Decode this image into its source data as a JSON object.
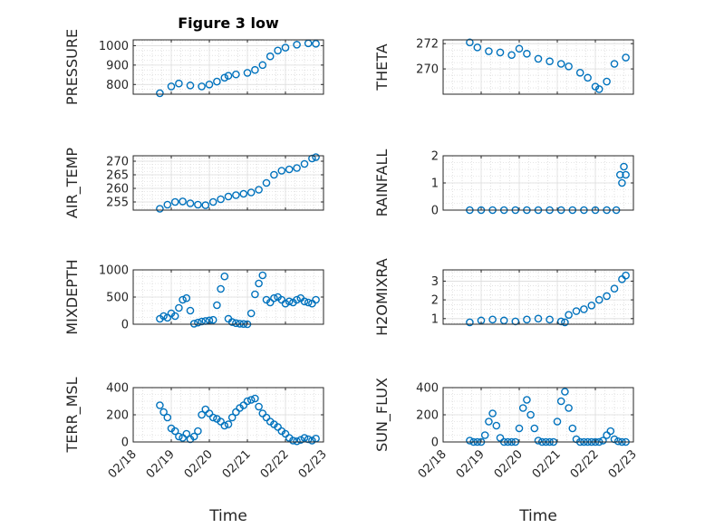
{
  "figure": {
    "title": "Figure 3 low",
    "xlabel_left": "Time",
    "xlabel_right": "Time",
    "marker_color": "#0072BD",
    "x_tick_labels": [
      "02/18",
      "02/19",
      "02/20",
      "02/21",
      "02/22",
      "02/23"
    ]
  },
  "chart_data": [
    {
      "id": "pressure",
      "type": "scatter",
      "ylabel": "PRESSURE",
      "ylim": [
        750,
        1030
      ],
      "yticks": [
        800,
        900,
        1000
      ],
      "grid": true,
      "x": [
        0.7,
        1.0,
        1.2,
        1.5,
        1.8,
        2.0,
        2.2,
        2.4,
        2.5,
        2.7,
        3.0,
        3.2,
        3.4,
        3.6,
        3.8,
        4.0,
        4.3,
        4.6,
        4.8
      ],
      "y": [
        755,
        790,
        805,
        795,
        790,
        800,
        815,
        835,
        845,
        852,
        860,
        875,
        900,
        945,
        975,
        990,
        1005,
        1012,
        1010
      ]
    },
    {
      "id": "theta",
      "type": "scatter",
      "ylabel": "THETA",
      "ylim": [
        268,
        272.3
      ],
      "yticks": [
        270,
        272
      ],
      "grid": true,
      "x": [
        0.7,
        0.9,
        1.2,
        1.5,
        1.8,
        2.0,
        2.2,
        2.5,
        2.8,
        3.1,
        3.3,
        3.6,
        3.8,
        4.0,
        4.1,
        4.3,
        4.5,
        4.8
      ],
      "y": [
        272.1,
        271.7,
        271.4,
        271.3,
        271.1,
        271.6,
        271.2,
        270.8,
        270.6,
        270.4,
        270.2,
        269.7,
        269.3,
        268.6,
        268.4,
        269.0,
        270.4,
        270.9
      ]
    },
    {
      "id": "air_temp",
      "type": "scatter",
      "ylabel": "AIR_TEMP",
      "ylim": [
        252,
        272
      ],
      "yticks": [
        255,
        260,
        265,
        270
      ],
      "grid": true,
      "x": [
        0.7,
        0.9,
        1.1,
        1.3,
        1.5,
        1.7,
        1.9,
        2.1,
        2.3,
        2.5,
        2.7,
        2.9,
        3.1,
        3.3,
        3.5,
        3.7,
        3.9,
        4.1,
        4.3,
        4.5,
        4.7,
        4.8
      ],
      "y": [
        252.5,
        254,
        255,
        255.2,
        254.5,
        254,
        253.8,
        255,
        256,
        257,
        257.5,
        258,
        258.5,
        259.5,
        262,
        265,
        266.5,
        267,
        267.5,
        269,
        271,
        271.5
      ]
    },
    {
      "id": "rainfall",
      "type": "scatter",
      "ylabel": "RAINFALL",
      "ylim": [
        0,
        2
      ],
      "yticks": [
        0,
        1,
        2
      ],
      "grid": true,
      "x": [
        0.7,
        1.0,
        1.3,
        1.6,
        1.9,
        2.2,
        2.5,
        2.8,
        3.1,
        3.4,
        3.7,
        4.0,
        4.3,
        4.55,
        4.65,
        4.7,
        4.75,
        4.8
      ],
      "y": [
        0,
        0,
        0,
        0,
        0,
        0,
        0,
        0,
        0,
        0,
        0,
        0,
        0,
        0,
        1.3,
        1.0,
        1.6,
        1.3
      ]
    },
    {
      "id": "mixdepth",
      "type": "scatter",
      "ylabel": "MIXDEPTH",
      "ylim": [
        0,
        1000
      ],
      "yticks": [
        0,
        500,
        1000
      ],
      "grid": true,
      "x": [
        0.7,
        0.8,
        0.9,
        1.0,
        1.1,
        1.2,
        1.3,
        1.4,
        1.5,
        1.6,
        1.7,
        1.8,
        1.9,
        2.0,
        2.1,
        2.2,
        2.3,
        2.4,
        2.5,
        2.6,
        2.7,
        2.8,
        2.9,
        3.0,
        3.1,
        3.2,
        3.3,
        3.4,
        3.5,
        3.6,
        3.7,
        3.8,
        3.9,
        4.0,
        4.1,
        4.2,
        4.3,
        4.4,
        4.5,
        4.6,
        4.7,
        4.8
      ],
      "y": [
        100,
        150,
        120,
        200,
        150,
        300,
        450,
        480,
        250,
        10,
        30,
        50,
        60,
        70,
        80,
        350,
        650,
        880,
        100,
        40,
        20,
        10,
        5,
        0,
        200,
        550,
        750,
        900,
        450,
        400,
        480,
        500,
        450,
        380,
        420,
        400,
        450,
        480,
        420,
        400,
        380,
        450
      ]
    },
    {
      "id": "h2omixra",
      "type": "scatter",
      "ylabel": "H2OMIXRA",
      "ylim": [
        0.7,
        3.6
      ],
      "yticks": [
        1,
        2,
        3
      ],
      "grid": true,
      "x": [
        0.7,
        1.0,
        1.3,
        1.6,
        1.9,
        2.2,
        2.5,
        2.8,
        3.1,
        3.2,
        3.3,
        3.5,
        3.7,
        3.9,
        4.1,
        4.3,
        4.5,
        4.7,
        4.8
      ],
      "y": [
        0.8,
        0.9,
        0.95,
        0.9,
        0.85,
        0.95,
        1.0,
        0.95,
        0.85,
        0.8,
        1.2,
        1.4,
        1.5,
        1.7,
        2.0,
        2.2,
        2.6,
        3.1,
        3.3
      ]
    },
    {
      "id": "terr_msl",
      "type": "scatter",
      "ylabel": "TERR_MSL",
      "ylim": [
        0,
        400
      ],
      "yticks": [
        0,
        200,
        400
      ],
      "grid": true,
      "x": [
        0.7,
        0.8,
        0.9,
        1.0,
        1.1,
        1.2,
        1.3,
        1.4,
        1.5,
        1.6,
        1.7,
        1.8,
        1.9,
        2.0,
        2.1,
        2.2,
        2.3,
        2.4,
        2.5,
        2.6,
        2.7,
        2.8,
        2.9,
        3.0,
        3.1,
        3.2,
        3.3,
        3.4,
        3.5,
        3.6,
        3.7,
        3.8,
        3.9,
        4.0,
        4.1,
        4.2,
        4.3,
        4.4,
        4.5,
        4.6,
        4.7,
        4.8
      ],
      "y": [
        270,
        220,
        180,
        100,
        80,
        40,
        30,
        60,
        20,
        40,
        80,
        200,
        240,
        210,
        180,
        170,
        150,
        120,
        130,
        180,
        220,
        250,
        270,
        300,
        310,
        320,
        260,
        210,
        180,
        150,
        130,
        110,
        80,
        60,
        30,
        10,
        5,
        15,
        30,
        20,
        10,
        25
      ]
    },
    {
      "id": "sun_flux",
      "type": "scatter",
      "ylabel": "SUN_FLUX",
      "ylim": [
        0,
        400
      ],
      "yticks": [
        0,
        200,
        400
      ],
      "grid": true,
      "x": [
        0.7,
        0.8,
        0.9,
        1.0,
        1.1,
        1.2,
        1.3,
        1.4,
        1.5,
        1.6,
        1.7,
        1.8,
        1.9,
        2.0,
        2.1,
        2.2,
        2.3,
        2.4,
        2.5,
        2.6,
        2.7,
        2.8,
        2.9,
        3.0,
        3.1,
        3.2,
        3.3,
        3.4,
        3.5,
        3.6,
        3.7,
        3.8,
        3.9,
        4.0,
        4.1,
        4.2,
        4.3,
        4.4,
        4.5,
        4.6,
        4.7,
        4.8
      ],
      "y": [
        10,
        0,
        0,
        0,
        50,
        150,
        210,
        120,
        30,
        0,
        0,
        0,
        0,
        100,
        250,
        310,
        200,
        100,
        10,
        0,
        0,
        0,
        0,
        150,
        300,
        370,
        250,
        100,
        20,
        0,
        0,
        0,
        0,
        0,
        0,
        10,
        50,
        80,
        20,
        5,
        0,
        0
      ]
    }
  ]
}
